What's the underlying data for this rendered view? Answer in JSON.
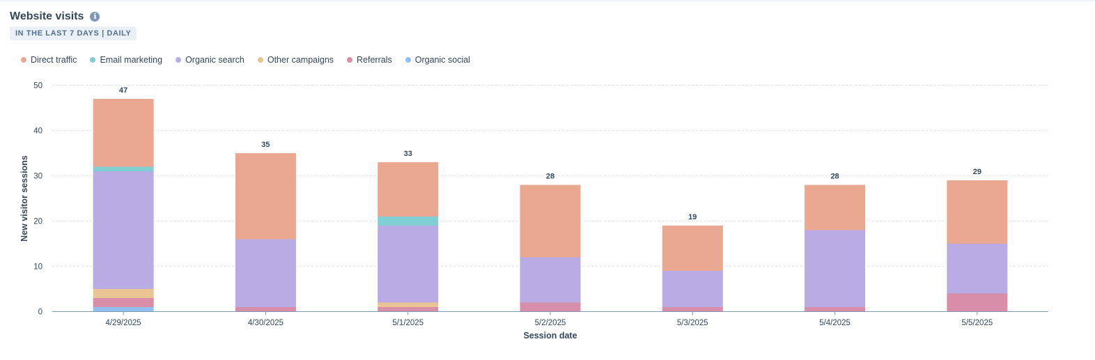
{
  "header": {
    "title": "Website visits",
    "info_icon": "info-icon",
    "range_tag": "IN THE LAST 7 DAYS | DAILY"
  },
  "chart_data": {
    "type": "bar",
    "stacked": true,
    "categories": [
      "4/29/2025",
      "4/30/2025",
      "5/1/2025",
      "5/2/2025",
      "5/3/2025",
      "5/4/2025",
      "5/5/2025"
    ],
    "series": [
      {
        "name": "Organic social",
        "color": "#91bff0",
        "values": [
          1,
          0,
          0,
          0,
          0,
          0,
          0
        ]
      },
      {
        "name": "Referrals",
        "color": "#d88da9",
        "values": [
          2,
          1,
          1,
          2,
          1,
          1,
          4
        ]
      },
      {
        "name": "Other campaigns",
        "color": "#eac594",
        "values": [
          2,
          0,
          1,
          0,
          0,
          0,
          0
        ]
      },
      {
        "name": "Organic search",
        "color": "#b9abe4",
        "values": [
          26,
          15,
          17,
          10,
          8,
          17,
          11
        ]
      },
      {
        "name": "Email marketing",
        "color": "#7fcfd5",
        "values": [
          1,
          0,
          2,
          0,
          0,
          0,
          0
        ]
      },
      {
        "name": "Direct traffic",
        "color": "#eaa891",
        "values": [
          15,
          19,
          12,
          16,
          10,
          10,
          14
        ]
      }
    ],
    "legend_order": [
      "Direct traffic",
      "Email marketing",
      "Organic search",
      "Other campaigns",
      "Referrals",
      "Organic social"
    ],
    "totals": [
      47,
      35,
      33,
      28,
      19,
      28,
      29
    ],
    "xlabel": "Session date",
    "ylabel": "New visitor sessions",
    "ylim": [
      0,
      50
    ],
    "yticks": [
      0,
      10,
      20,
      30,
      40,
      50
    ],
    "grid": true,
    "legend_position": "top-left"
  }
}
